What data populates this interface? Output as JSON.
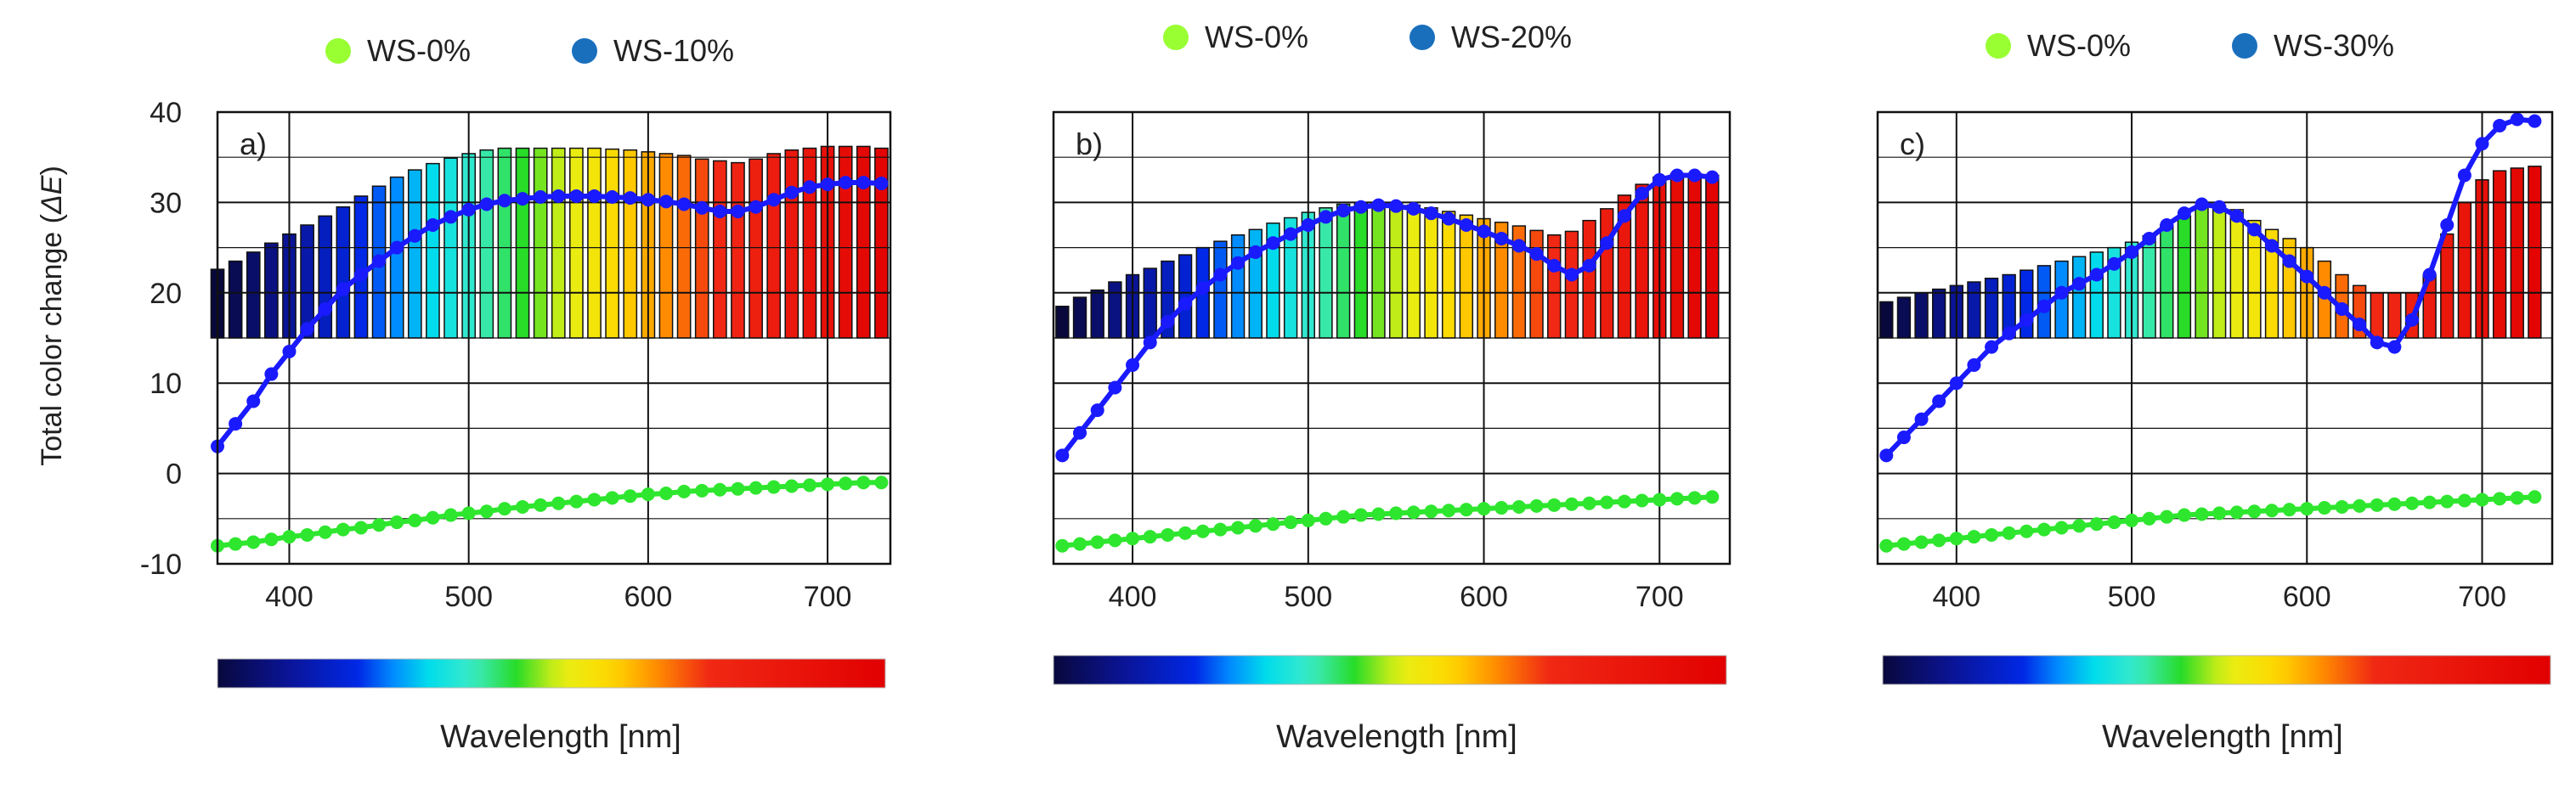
{
  "figure": {
    "ylabel": "Total color change (",
    "ylabel_symbol": "ΔE",
    "ylabel_close": ")",
    "y_ticks": [
      "40",
      "30",
      "20",
      "10",
      "0",
      "-10"
    ],
    "colors": {
      "ref_marker": "#99ff33",
      "ws_marker": "#1a6fbd",
      "ref_line": "#2ee62e",
      "ws_line": "#1a1aff"
    }
  },
  "chart_data": [
    {
      "type": "line",
      "panel_label": "a)",
      "title": "",
      "xlabel": "Wavelength [nm]",
      "ylabel": "Total color change (ΔE)",
      "xlim": [
        360,
        735
      ],
      "ylim": [
        -10,
        40
      ],
      "x_ticks": [
        "400",
        "500",
        "600",
        "700"
      ],
      "legend": [
        "WS-0%",
        "WS-10%"
      ],
      "legend_position": "top-center",
      "grid": true,
      "bars": {
        "x": [
          360,
          370,
          380,
          390,
          400,
          410,
          420,
          430,
          440,
          450,
          460,
          470,
          480,
          490,
          500,
          510,
          520,
          530,
          540,
          550,
          560,
          570,
          580,
          590,
          600,
          610,
          620,
          630,
          640,
          650,
          660,
          670,
          680,
          690,
          700,
          710,
          720,
          730
        ],
        "top": [
          22.6,
          23.5,
          24.5,
          25.5,
          26.5,
          27.5,
          28.5,
          29.5,
          30.7,
          31.8,
          32.8,
          33.6,
          34.3,
          34.9,
          35.4,
          35.8,
          36.0,
          36.0,
          36.0,
          36.0,
          36.0,
          36.0,
          35.9,
          35.8,
          35.6,
          35.4,
          35.2,
          34.8,
          34.6,
          34.4,
          34.8,
          35.4,
          35.8,
          36.0,
          36.2,
          36.2,
          36.2,
          36.0
        ],
        "baseline": 15
      },
      "series": [
        {
          "name": "WS-0%",
          "x": [
            360,
            370,
            380,
            390,
            400,
            410,
            420,
            430,
            440,
            450,
            460,
            470,
            480,
            490,
            500,
            510,
            520,
            530,
            540,
            550,
            560,
            570,
            580,
            590,
            600,
            610,
            620,
            630,
            640,
            650,
            660,
            670,
            680,
            690,
            700,
            710,
            720,
            730
          ],
          "y": [
            -8.0,
            -7.8,
            -7.6,
            -7.3,
            -7.0,
            -6.8,
            -6.5,
            -6.2,
            -6.0,
            -5.7,
            -5.4,
            -5.2,
            -4.9,
            -4.6,
            -4.4,
            -4.2,
            -3.9,
            -3.7,
            -3.5,
            -3.3,
            -3.1,
            -2.9,
            -2.7,
            -2.5,
            -2.3,
            -2.2,
            -2.0,
            -1.9,
            -1.8,
            -1.7,
            -1.6,
            -1.5,
            -1.4,
            -1.3,
            -1.2,
            -1.1,
            -1.0,
            -1.0
          ]
        },
        {
          "name": "WS-10%",
          "x": [
            360,
            370,
            380,
            390,
            400,
            410,
            420,
            430,
            440,
            450,
            460,
            470,
            480,
            490,
            500,
            510,
            520,
            530,
            540,
            550,
            560,
            570,
            580,
            590,
            600,
            610,
            620,
            630,
            640,
            650,
            660,
            670,
            680,
            690,
            700,
            710,
            720,
            730
          ],
          "y": [
            3.0,
            5.5,
            8.0,
            11.0,
            13.5,
            16.0,
            18.2,
            20.4,
            22.0,
            23.5,
            25.0,
            26.3,
            27.5,
            28.4,
            29.2,
            29.8,
            30.2,
            30.4,
            30.6,
            30.7,
            30.7,
            30.7,
            30.6,
            30.5,
            30.3,
            30.1,
            29.8,
            29.4,
            29.0,
            29.0,
            29.5,
            30.3,
            31.1,
            31.7,
            32.0,
            32.2,
            32.2,
            32.1
          ]
        }
      ]
    },
    {
      "type": "line",
      "panel_label": "b)",
      "title": "",
      "xlabel": "Wavelength [nm]",
      "ylabel": "Total color change (ΔE)",
      "xlim": [
        355,
        740
      ],
      "ylim": [
        -10,
        40
      ],
      "x_ticks": [
        "400",
        "500",
        "600",
        "700"
      ],
      "legend": [
        "WS-0%",
        "WS-20%"
      ],
      "legend_position": "top-center",
      "grid": true,
      "bars": {
        "x": [
          360,
          370,
          380,
          390,
          400,
          410,
          420,
          430,
          440,
          450,
          460,
          470,
          480,
          490,
          500,
          510,
          520,
          530,
          540,
          550,
          560,
          570,
          580,
          590,
          600,
          610,
          620,
          630,
          640,
          650,
          660,
          670,
          680,
          690,
          700,
          710,
          720,
          730
        ],
        "top": [
          18.5,
          19.5,
          20.3,
          21.2,
          22.0,
          22.7,
          23.5,
          24.2,
          25.0,
          25.7,
          26.4,
          27.0,
          27.7,
          28.3,
          28.9,
          29.4,
          29.8,
          30.0,
          30.0,
          29.9,
          29.7,
          29.4,
          29.0,
          28.6,
          28.2,
          27.8,
          27.4,
          26.9,
          26.4,
          26.8,
          28.0,
          29.3,
          30.8,
          32.0,
          32.8,
          33.2,
          33.2,
          33.0
        ],
        "baseline": 15
      },
      "series": [
        {
          "name": "WS-0%",
          "x": [
            360,
            370,
            380,
            390,
            400,
            410,
            420,
            430,
            440,
            450,
            460,
            470,
            480,
            490,
            500,
            510,
            520,
            530,
            540,
            550,
            560,
            570,
            580,
            590,
            600,
            610,
            620,
            630,
            640,
            650,
            660,
            670,
            680,
            690,
            700,
            710,
            720,
            730
          ],
          "y": [
            -8.0,
            -7.8,
            -7.6,
            -7.4,
            -7.2,
            -7.0,
            -6.8,
            -6.6,
            -6.4,
            -6.2,
            -6.0,
            -5.8,
            -5.6,
            -5.4,
            -5.2,
            -5.0,
            -4.8,
            -4.6,
            -4.5,
            -4.4,
            -4.3,
            -4.2,
            -4.1,
            -4.0,
            -3.9,
            -3.8,
            -3.7,
            -3.6,
            -3.5,
            -3.4,
            -3.3,
            -3.2,
            -3.1,
            -3.0,
            -2.9,
            -2.8,
            -2.7,
            -2.6
          ]
        },
        {
          "name": "WS-20%",
          "x": [
            360,
            370,
            380,
            390,
            400,
            410,
            420,
            430,
            440,
            450,
            460,
            470,
            480,
            490,
            500,
            510,
            520,
            530,
            540,
            550,
            560,
            570,
            580,
            590,
            600,
            610,
            620,
            630,
            640,
            650,
            660,
            670,
            680,
            690,
            700,
            710,
            720,
            730
          ],
          "y": [
            2.0,
            4.5,
            7.0,
            9.5,
            12.0,
            14.5,
            16.8,
            18.8,
            20.5,
            22.0,
            23.3,
            24.5,
            25.5,
            26.5,
            27.5,
            28.4,
            29.1,
            29.5,
            29.7,
            29.6,
            29.3,
            28.8,
            28.2,
            27.5,
            26.8,
            26.0,
            25.2,
            24.3,
            23.0,
            22.0,
            23.0,
            25.5,
            28.5,
            31.0,
            32.5,
            33.0,
            33.0,
            32.8
          ]
        }
      ]
    },
    {
      "type": "line",
      "panel_label": "c)",
      "title": "",
      "xlabel": "Wavelength [nm]",
      "ylabel": "Total color change (ΔE)",
      "xlim": [
        355,
        740
      ],
      "ylim": [
        -10,
        40
      ],
      "x_ticks": [
        "400",
        "500",
        "600",
        "700"
      ],
      "legend": [
        "WS-0%",
        "WS-30%"
      ],
      "legend_position": "top-center",
      "grid": true,
      "bars": {
        "x": [
          360,
          370,
          380,
          390,
          400,
          410,
          420,
          430,
          440,
          450,
          460,
          470,
          480,
          490,
          500,
          510,
          520,
          530,
          540,
          550,
          560,
          570,
          580,
          590,
          600,
          610,
          620,
          630,
          640,
          650,
          660,
          670,
          680,
          690,
          700,
          710,
          720,
          730
        ],
        "top": [
          19.0,
          19.5,
          20.0,
          20.4,
          20.8,
          21.2,
          21.6,
          22.0,
          22.5,
          23.0,
          23.5,
          24.0,
          24.5,
          25.0,
          25.6,
          26.3,
          27.5,
          28.5,
          29.5,
          29.6,
          29.2,
          28.0,
          27.0,
          26.0,
          25.0,
          23.5,
          22.0,
          20.8,
          20.0,
          20.0,
          20.0,
          22.0,
          26.5,
          30.0,
          32.5,
          33.5,
          33.8,
          34.0
        ],
        "baseline": 15
      },
      "series": [
        {
          "name": "WS-0%",
          "x": [
            360,
            370,
            380,
            390,
            400,
            410,
            420,
            430,
            440,
            450,
            460,
            470,
            480,
            490,
            500,
            510,
            520,
            530,
            540,
            550,
            560,
            570,
            580,
            590,
            600,
            610,
            620,
            630,
            640,
            650,
            660,
            670,
            680,
            690,
            700,
            710,
            720,
            730
          ],
          "y": [
            -8.0,
            -7.8,
            -7.6,
            -7.4,
            -7.2,
            -7.0,
            -6.8,
            -6.6,
            -6.4,
            -6.2,
            -6.0,
            -5.8,
            -5.6,
            -5.4,
            -5.2,
            -5.0,
            -4.8,
            -4.6,
            -4.5,
            -4.4,
            -4.3,
            -4.2,
            -4.1,
            -4.0,
            -3.9,
            -3.8,
            -3.7,
            -3.6,
            -3.5,
            -3.4,
            -3.3,
            -3.2,
            -3.1,
            -3.0,
            -2.9,
            -2.8,
            -2.7,
            -2.6
          ]
        },
        {
          "name": "WS-30%",
          "x": [
            360,
            370,
            380,
            390,
            400,
            410,
            420,
            430,
            440,
            450,
            460,
            470,
            480,
            490,
            500,
            510,
            520,
            530,
            540,
            550,
            560,
            570,
            580,
            590,
            600,
            610,
            620,
            630,
            640,
            650,
            660,
            670,
            680,
            690,
            700,
            710,
            720,
            730
          ],
          "y": [
            2.0,
            4.0,
            6.0,
            8.0,
            10.0,
            12.0,
            14.0,
            15.5,
            17.0,
            18.5,
            20.0,
            21.0,
            22.0,
            23.2,
            24.5,
            26.0,
            27.5,
            28.8,
            29.8,
            29.5,
            28.5,
            27.0,
            25.2,
            23.5,
            21.8,
            20.0,
            18.2,
            16.5,
            14.5,
            14.0,
            17.0,
            22.0,
            27.5,
            33.0,
            36.5,
            38.5,
            39.2,
            39.0
          ]
        }
      ]
    }
  ]
}
